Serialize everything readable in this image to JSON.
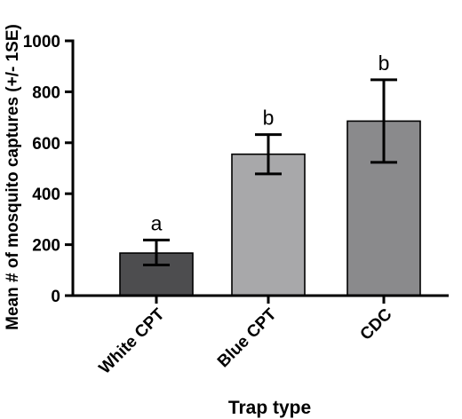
{
  "chart_data": {
    "type": "bar",
    "categories": [
      "White CPT",
      "Blue CPT",
      "CDC"
    ],
    "values": [
      167,
      555,
      685
    ],
    "error_bars": [
      {
        "lower": 120,
        "upper": 218
      },
      {
        "lower": 478,
        "upper": 632
      },
      {
        "lower": 523,
        "upper": 847
      }
    ],
    "significance_letters": [
      "a",
      "b",
      "b"
    ],
    "bar_colors": [
      "#4d4d4f",
      "#a8a8aa",
      "#8a8a8c"
    ],
    "title": "",
    "xlabel": "Trap type",
    "ylabel": "Mean # of mosquito captures (+/- 1SE)",
    "ylim": [
      0,
      1000
    ],
    "yticks": [
      "0",
      "200",
      "400",
      "600",
      "800",
      "1000"
    ],
    "grid": false,
    "legend": "none"
  }
}
